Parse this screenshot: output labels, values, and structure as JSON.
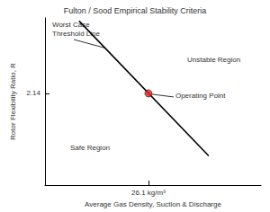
{
  "chart_data": {
    "type": "line",
    "title": "Fulton / Sood Empirical Stability Criteria",
    "x_label": "Average Gas Density, Suction & Discharge",
    "y_label": "Rotor Flexibility Ratio, R",
    "xlim": [
      0,
      54.5
    ],
    "ylim": [
      0,
      3.9
    ],
    "xticks": [
      {
        "value": 26.1,
        "label": "26.1 kg/m³"
      }
    ],
    "yticks": [
      2.14
    ],
    "grid": false,
    "series": [
      {
        "name": "Worst Case Threshold Line",
        "type": "line",
        "color": "#000000",
        "x": [
          8.6,
          41.3
        ],
        "values": [
          3.83,
          0.68
        ]
      },
      {
        "name": "Operating Point",
        "type": "scatter",
        "color": "#e02020",
        "marker": "circle",
        "x": [
          26.1
        ],
        "values": [
          2.14
        ]
      }
    ],
    "annotations": [
      "Unstable Region",
      "Safe Region"
    ]
  }
}
